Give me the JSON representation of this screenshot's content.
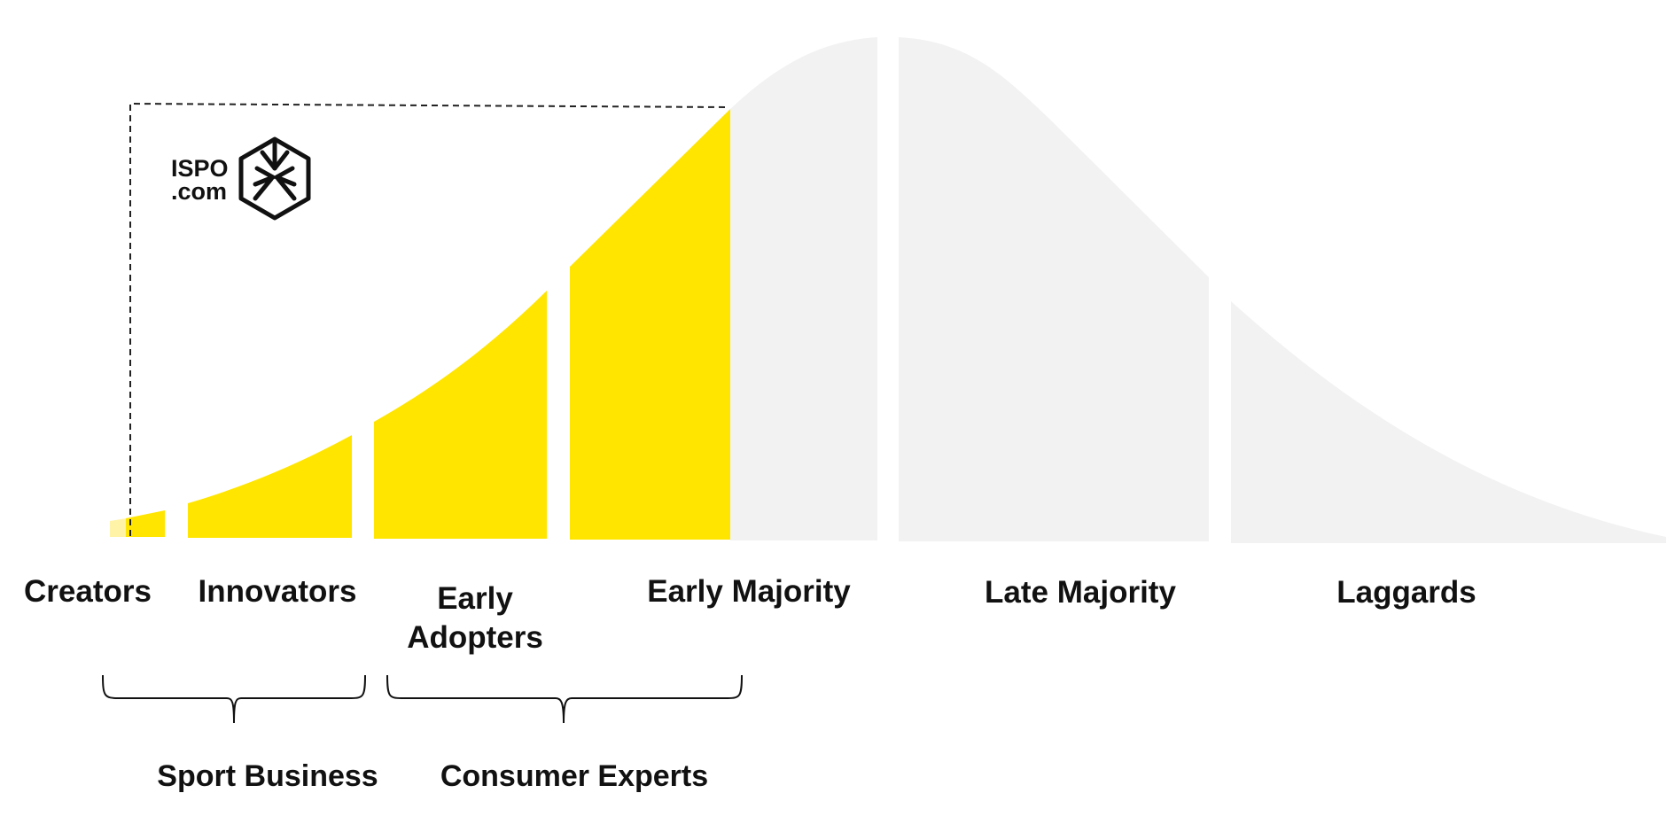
{
  "colors": {
    "adopted": "#FFE500",
    "adopted_light": "#FFF3A8",
    "remaining": "#F2F2F2",
    "text": "#111111",
    "outline": "#222222"
  },
  "logo": {
    "line1": "ISPO",
    "line2": ".com",
    "icon": "ispo-hexagon-icon"
  },
  "segments": [
    {
      "key": "creators",
      "label": "Creators"
    },
    {
      "key": "innovators",
      "label": "Innovators"
    },
    {
      "key": "early_adopters",
      "label_line1": "Early",
      "label_line2": "Adopters"
    },
    {
      "key": "early_majority",
      "label": "Early Majority"
    },
    {
      "key": "late_majority",
      "label": "Late Majority"
    },
    {
      "key": "laggards",
      "label": "Laggards"
    }
  ],
  "groups": [
    {
      "key": "sport_business",
      "label": "Sport Business"
    },
    {
      "key": "consumer_experts",
      "label": "Consumer Experts"
    }
  ]
}
